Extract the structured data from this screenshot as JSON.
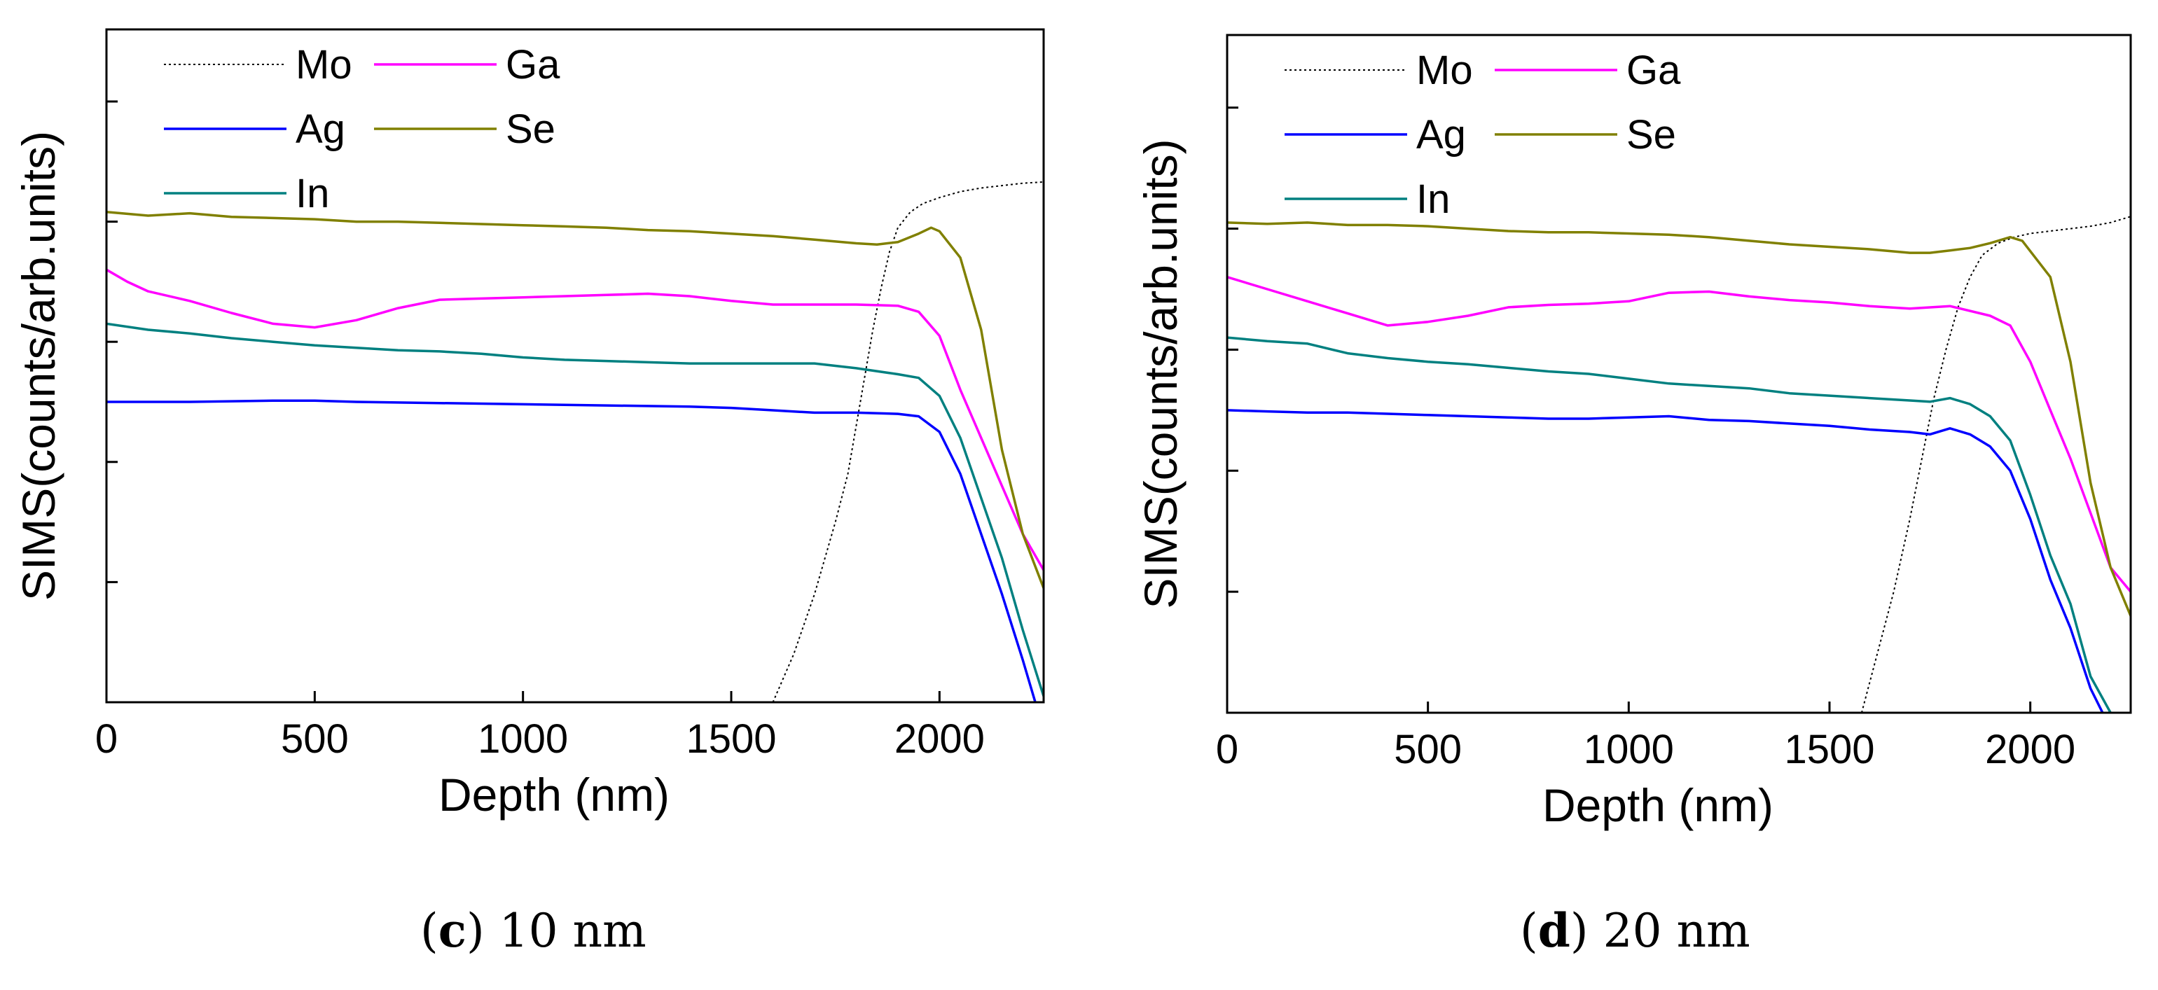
{
  "chart_data": [
    {
      "type": "line",
      "caption": {
        "letter": "c",
        "text": "10 nm"
      },
      "xlabel": "Depth (nm)",
      "ylabel": "SIMS(counts/arb.units)",
      "xlim": [
        0,
        2250
      ],
      "ylim": [
        0,
        5.6
      ],
      "xticks": [
        0,
        500,
        1000,
        1500,
        2000
      ],
      "yticks": [
        1,
        2,
        3,
        4,
        5
      ],
      "yscale": "log (unlabeled decades)",
      "legend_position": "top-left",
      "series": [
        {
          "name": "Mo",
          "color": "#000000",
          "style": "dotted",
          "x": [
            1600,
            1650,
            1700,
            1750,
            1780,
            1800,
            1820,
            1840,
            1860,
            1880,
            1900,
            1930,
            1960,
            2000,
            2050,
            2100,
            2150,
            2200,
            2250
          ],
          "y": [
            0,
            0.4,
            0.9,
            1.5,
            1.9,
            2.3,
            2.7,
            3.1,
            3.45,
            3.75,
            3.95,
            4.08,
            4.15,
            4.2,
            4.25,
            4.28,
            4.3,
            4.32,
            4.33
          ]
        },
        {
          "name": "Ga",
          "color": "#ff00ff",
          "style": "solid",
          "x": [
            0,
            50,
            100,
            200,
            300,
            400,
            500,
            600,
            700,
            800,
            900,
            1000,
            1100,
            1200,
            1300,
            1400,
            1500,
            1600,
            1700,
            1800,
            1900,
            1950,
            2000,
            2050,
            2100,
            2150,
            2200,
            2250
          ],
          "y": [
            3.6,
            3.5,
            3.42,
            3.34,
            3.24,
            3.15,
            3.12,
            3.18,
            3.28,
            3.35,
            3.36,
            3.37,
            3.38,
            3.39,
            3.4,
            3.38,
            3.34,
            3.31,
            3.31,
            3.31,
            3.3,
            3.25,
            3.05,
            2.6,
            2.2,
            1.8,
            1.4,
            1.1
          ]
        },
        {
          "name": "Se",
          "color": "#808000",
          "style": "solid",
          "x": [
            0,
            100,
            200,
            300,
            400,
            500,
            600,
            700,
            800,
            900,
            1000,
            1100,
            1200,
            1300,
            1400,
            1500,
            1600,
            1700,
            1800,
            1850,
            1900,
            1950,
            1980,
            2000,
            2050,
            2100,
            2150,
            2200,
            2250
          ],
          "y": [
            4.08,
            4.05,
            4.07,
            4.04,
            4.03,
            4.02,
            4.0,
            4.0,
            3.99,
            3.98,
            3.97,
            3.96,
            3.95,
            3.93,
            3.92,
            3.9,
            3.88,
            3.85,
            3.82,
            3.81,
            3.83,
            3.9,
            3.95,
            3.92,
            3.7,
            3.1,
            2.1,
            1.4,
            0.95
          ]
        },
        {
          "name": "Ag",
          "color": "#0000ff",
          "style": "solid",
          "x": [
            0,
            200,
            400,
            500,
            600,
            800,
            1000,
            1200,
            1400,
            1500,
            1600,
            1700,
            1800,
            1900,
            1950,
            2000,
            2050,
            2100,
            2150,
            2200,
            2230
          ],
          "y": [
            2.5,
            2.5,
            2.51,
            2.51,
            2.5,
            2.49,
            2.48,
            2.47,
            2.46,
            2.45,
            2.43,
            2.41,
            2.41,
            2.4,
            2.38,
            2.25,
            1.9,
            1.4,
            0.9,
            0.35,
            0
          ]
        },
        {
          "name": "In",
          "color": "#008080",
          "style": "solid",
          "x": [
            0,
            100,
            200,
            300,
            400,
            500,
            600,
            700,
            800,
            900,
            1000,
            1100,
            1200,
            1300,
            1400,
            1500,
            1600,
            1700,
            1800,
            1900,
            1950,
            2000,
            2050,
            2100,
            2150,
            2200,
            2250
          ],
          "y": [
            3.15,
            3.1,
            3.07,
            3.03,
            3.0,
            2.97,
            2.95,
            2.93,
            2.92,
            2.9,
            2.87,
            2.85,
            2.84,
            2.83,
            2.82,
            2.82,
            2.82,
            2.82,
            2.78,
            2.73,
            2.7,
            2.55,
            2.2,
            1.7,
            1.2,
            0.6,
            0.05
          ]
        }
      ]
    },
    {
      "type": "line",
      "caption": {
        "letter": "d",
        "text": "20 nm"
      },
      "xlabel": "Depth (nm)",
      "ylabel": "SIMS(counts/arb.units)",
      "xlim": [
        0,
        2250
      ],
      "ylim": [
        0,
        5.6
      ],
      "xticks": [
        0,
        500,
        1000,
        1500,
        2000
      ],
      "yticks": [
        1,
        2,
        3,
        4,
        5
      ],
      "yscale": "log (unlabeled decades)",
      "legend_position": "top-left",
      "series": [
        {
          "name": "Mo",
          "color": "#000000",
          "style": "dotted",
          "x": [
            1580,
            1620,
            1660,
            1700,
            1730,
            1760,
            1790,
            1820,
            1850,
            1880,
            1920,
            1960,
            2000,
            2050,
            2100,
            2150,
            2200,
            2250
          ],
          "y": [
            0,
            0.5,
            1.0,
            1.6,
            2.1,
            2.6,
            3.0,
            3.35,
            3.6,
            3.78,
            3.88,
            3.93,
            3.96,
            3.98,
            4.0,
            4.02,
            4.05,
            4.1
          ]
        },
        {
          "name": "Ga",
          "color": "#ff00ff",
          "style": "solid",
          "x": [
            0,
            100,
            200,
            300,
            400,
            500,
            600,
            700,
            800,
            900,
            1000,
            1100,
            1200,
            1300,
            1400,
            1500,
            1600,
            1700,
            1800,
            1900,
            1950,
            2000,
            2050,
            2100,
            2150,
            2200,
            2250
          ],
          "y": [
            3.6,
            3.5,
            3.4,
            3.3,
            3.2,
            3.23,
            3.28,
            3.35,
            3.37,
            3.38,
            3.4,
            3.47,
            3.48,
            3.44,
            3.41,
            3.39,
            3.36,
            3.34,
            3.36,
            3.28,
            3.2,
            2.9,
            2.5,
            2.1,
            1.65,
            1.2,
            1.0
          ]
        },
        {
          "name": "Se",
          "color": "#808000",
          "style": "solid",
          "x": [
            0,
            100,
            200,
            300,
            400,
            500,
            600,
            700,
            800,
            900,
            1000,
            1100,
            1200,
            1300,
            1400,
            1500,
            1600,
            1700,
            1750,
            1800,
            1850,
            1900,
            1950,
            1980,
            2050,
            2100,
            2150,
            2200,
            2250
          ],
          "y": [
            4.05,
            4.04,
            4.05,
            4.03,
            4.03,
            4.02,
            4.0,
            3.98,
            3.97,
            3.97,
            3.96,
            3.95,
            3.93,
            3.9,
            3.87,
            3.85,
            3.83,
            3.8,
            3.8,
            3.82,
            3.84,
            3.88,
            3.93,
            3.9,
            3.6,
            2.9,
            1.9,
            1.2,
            0.8
          ]
        },
        {
          "name": "Ag",
          "color": "#0000ff",
          "style": "solid",
          "x": [
            0,
            100,
            200,
            300,
            400,
            500,
            600,
            700,
            800,
            900,
            1000,
            1100,
            1200,
            1300,
            1400,
            1500,
            1600,
            1700,
            1750,
            1800,
            1850,
            1900,
            1950,
            2000,
            2050,
            2100,
            2150,
            2180
          ],
          "y": [
            2.5,
            2.49,
            2.48,
            2.48,
            2.47,
            2.46,
            2.45,
            2.44,
            2.43,
            2.43,
            2.44,
            2.45,
            2.42,
            2.41,
            2.39,
            2.37,
            2.34,
            2.32,
            2.3,
            2.35,
            2.3,
            2.2,
            2.0,
            1.6,
            1.1,
            0.7,
            0.2,
            0
          ]
        },
        {
          "name": "In",
          "color": "#008080",
          "style": "solid",
          "x": [
            0,
            100,
            200,
            300,
            400,
            500,
            600,
            700,
            800,
            900,
            1000,
            1100,
            1200,
            1300,
            1400,
            1500,
            1600,
            1700,
            1750,
            1800,
            1850,
            1900,
            1950,
            2000,
            2050,
            2100,
            2150,
            2200
          ],
          "y": [
            3.1,
            3.07,
            3.05,
            2.97,
            2.93,
            2.9,
            2.88,
            2.85,
            2.82,
            2.8,
            2.76,
            2.72,
            2.7,
            2.68,
            2.64,
            2.62,
            2.6,
            2.58,
            2.57,
            2.6,
            2.55,
            2.45,
            2.25,
            1.8,
            1.3,
            0.9,
            0.3,
            0
          ]
        }
      ]
    }
  ]
}
